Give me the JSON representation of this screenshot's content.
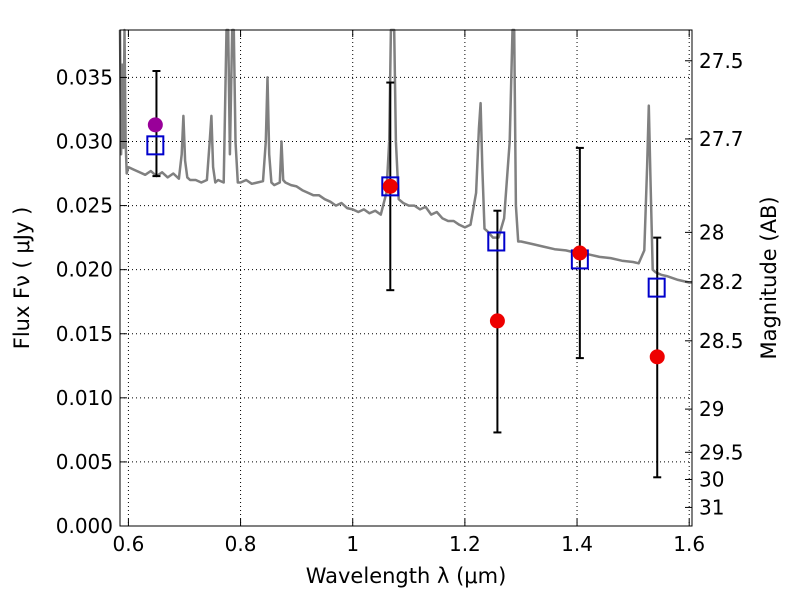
{
  "chart_data": {
    "type": "scatter",
    "xlabel": "Wavelength  λ (μm)",
    "ylabel": "Flux  Fν  ( μJy )",
    "ylabel2": "Magnitude (AB)",
    "xlim": [
      0.585,
      1.605
    ],
    "ylim": [
      0.0,
      0.0387
    ],
    "grid": true,
    "x_ticks": [
      0.6,
      0.8,
      1.0,
      1.2,
      1.4,
      1.6
    ],
    "x_tick_labels": [
      "0.6",
      "0.8",
      "1",
      "1.2",
      "1.4",
      "1.6"
    ],
    "y_ticks": [
      0.0,
      0.005,
      0.01,
      0.015,
      0.02,
      0.025,
      0.03,
      0.035
    ],
    "y_tick_labels": [
      "0.000",
      "0.005",
      "0.010",
      "0.015",
      "0.020",
      "0.025",
      "0.030",
      "0.035"
    ],
    "right_ticks": [
      {
        "label": "27.5",
        "flux": 0.0363
      },
      {
        "label": "27.7",
        "flux": 0.0302
      },
      {
        "label": "28",
        "flux": 0.02291
      },
      {
        "label": "28.2",
        "flux": 0.01905
      },
      {
        "label": "28.5",
        "flux": 0.01445
      },
      {
        "label": "29",
        "flux": 0.00912
      },
      {
        "label": "29.5",
        "flux": 0.00575
      },
      {
        "label": "30",
        "flux": 0.00363
      },
      {
        "label": "31",
        "flux": 0.00145
      }
    ],
    "series": [
      {
        "kind": "model_spectrum",
        "color": "#808080",
        "x": [
          0.585,
          0.587,
          0.589,
          0.591,
          0.593,
          0.595,
          0.597,
          0.6,
          0.61,
          0.62,
          0.63,
          0.64,
          0.65,
          0.66,
          0.67,
          0.68,
          0.69,
          0.695,
          0.698,
          0.701,
          0.705,
          0.71,
          0.72,
          0.73,
          0.74,
          0.745,
          0.748,
          0.751,
          0.755,
          0.76,
          0.77,
          0.775,
          0.778,
          0.781,
          0.785,
          0.788,
          0.791,
          0.795,
          0.8,
          0.81,
          0.82,
          0.83,
          0.84,
          0.845,
          0.848,
          0.851,
          0.855,
          0.86,
          0.87,
          0.873,
          0.876,
          0.88,
          0.89,
          0.9,
          0.91,
          0.92,
          0.93,
          0.94,
          0.95,
          0.96,
          0.97,
          0.98,
          0.99,
          1.0,
          1.01,
          1.02,
          1.03,
          1.04,
          1.05,
          1.06,
          1.065,
          1.068,
          1.071,
          1.074,
          1.077,
          1.082,
          1.09,
          1.1,
          1.11,
          1.12,
          1.13,
          1.14,
          1.15,
          1.16,
          1.17,
          1.18,
          1.19,
          1.2,
          1.21,
          1.22,
          1.225,
          1.228,
          1.231,
          1.235,
          1.24,
          1.25,
          1.26,
          1.27,
          1.28,
          1.285,
          1.288,
          1.291,
          1.295,
          1.3,
          1.32,
          1.34,
          1.36,
          1.38,
          1.4,
          1.42,
          1.44,
          1.46,
          1.48,
          1.5,
          1.51,
          1.52,
          1.525,
          1.528,
          1.531,
          1.535,
          1.54,
          1.55,
          1.56,
          1.58,
          1.6,
          1.605
        ],
        "y": [
          0.0387,
          0.029,
          0.036,
          0.0295,
          0.0387,
          0.03,
          0.0275,
          0.028,
          0.0278,
          0.0276,
          0.0274,
          0.0277,
          0.0273,
          0.0276,
          0.0272,
          0.0275,
          0.0271,
          0.029,
          0.032,
          0.0285,
          0.0272,
          0.027,
          0.027,
          0.0268,
          0.027,
          0.03,
          0.032,
          0.028,
          0.0268,
          0.027,
          0.0268,
          0.0387,
          0.0387,
          0.029,
          0.0387,
          0.0387,
          0.03,
          0.0268,
          0.0268,
          0.027,
          0.0267,
          0.0268,
          0.0269,
          0.03,
          0.035,
          0.029,
          0.0268,
          0.0266,
          0.0268,
          0.03,
          0.027,
          0.0268,
          0.0266,
          0.0265,
          0.0262,
          0.026,
          0.0258,
          0.0258,
          0.0255,
          0.0253,
          0.025,
          0.0252,
          0.0248,
          0.0247,
          0.0245,
          0.0247,
          0.0244,
          0.0246,
          0.0243,
          0.026,
          0.03,
          0.0387,
          0.0387,
          0.0387,
          0.03,
          0.0255,
          0.0252,
          0.025,
          0.025,
          0.0247,
          0.0249,
          0.0243,
          0.0245,
          0.024,
          0.0238,
          0.0238,
          0.0235,
          0.0233,
          0.0235,
          0.026,
          0.031,
          0.033,
          0.028,
          0.0232,
          0.023,
          0.0225,
          0.0225,
          0.024,
          0.03,
          0.0387,
          0.0387,
          0.025,
          0.0222,
          0.0222,
          0.022,
          0.0218,
          0.0216,
          0.0215,
          0.0213,
          0.0212,
          0.021,
          0.0209,
          0.0207,
          0.0206,
          0.0205,
          0.0215,
          0.028,
          0.0328,
          0.027,
          0.02,
          0.0198,
          0.0196,
          0.0195,
          0.0192,
          0.019,
          0.019
        ]
      },
      {
        "kind": "open_square",
        "color": "#0000cc",
        "x": [
          0.648,
          1.067,
          1.256,
          1.405,
          1.542
        ],
        "y": [
          0.0297,
          0.0265,
          0.0222,
          0.0208,
          0.0186
        ]
      },
      {
        "kind": "filled_circle",
        "colors": [
          "#990099",
          "#ee0000",
          "#ee0000",
          "#ee0000",
          "#ee0000"
        ],
        "x": [
          0.648,
          1.067,
          1.258,
          1.405,
          1.543
        ],
        "y": [
          0.0313,
          0.0265,
          0.016,
          0.0213,
          0.0132
        ]
      },
      {
        "kind": "error_bars",
        "color": "#000000",
        "x": [
          0.65,
          1.067,
          1.258,
          1.405,
          1.543
        ],
        "ylow": [
          0.0273,
          0.0184,
          0.0073,
          0.0131,
          0.0038
        ],
        "yhigh": [
          0.0355,
          0.0346,
          0.0246,
          0.0295,
          0.0225
        ]
      }
    ]
  }
}
